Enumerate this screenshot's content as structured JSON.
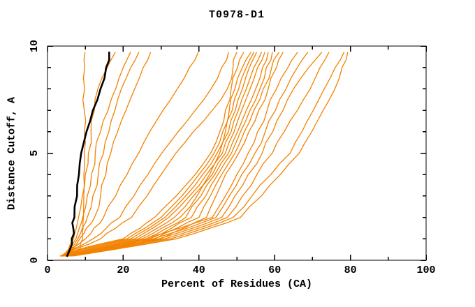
{
  "title": "T0978-D1",
  "x_axis": {
    "label": "Percent of Residues (CA)"
  },
  "y_axis": {
    "label": "Distance Cutoff, A"
  },
  "colors": {
    "model_line": "#f28200",
    "highlight_line": "#000000",
    "frame": "#000000",
    "background": "#ffffff"
  },
  "chart_data": {
    "type": "line",
    "title": "T0978-D1",
    "xlabel": "Percent of Residues (CA)",
    "ylabel": "Distance Cutoff, A",
    "xlim": [
      0,
      100
    ],
    "ylim": [
      0,
      10
    ],
    "grid": "off",
    "legend": "none",
    "x_major_ticks": [
      0,
      20,
      40,
      60,
      80,
      100
    ],
    "x_minor_ticks": [
      10,
      30,
      50,
      70,
      90
    ],
    "y_major_ticks": [
      0,
      5,
      10
    ],
    "y_minor_ticks": [
      1,
      2,
      3,
      4,
      6,
      7,
      8,
      9
    ],
    "y_grid": [
      0.2,
      0.5,
      1.0,
      1.5,
      2.0,
      3.0,
      4.0,
      5.0,
      6.0,
      7.0,
      8.0,
      9.0,
      9.7
    ],
    "series": [
      {
        "name": "model-01",
        "role": "model_line",
        "x": [
          4.4,
          8.6,
          9.3,
          9.4,
          9.5,
          9.6,
          9.6,
          9.7,
          9.7,
          9.7,
          9.8,
          9.8,
          9.9
        ]
      },
      {
        "name": "model-02",
        "role": "model_line",
        "x": [
          4.0,
          5.5,
          6.9,
          7.6,
          8.2,
          9.2,
          10.0,
          10.8,
          11.5,
          12.4,
          13.3,
          15.8,
          17.9
        ]
      },
      {
        "name": "model-03",
        "role": "model_line",
        "x": [
          4.4,
          5.8,
          7.5,
          8.4,
          9.3,
          10.5,
          11.6,
          12.6,
          14.0,
          16.0,
          18.0,
          20.0,
          21.9
        ]
      },
      {
        "name": "model-04",
        "role": "model_line",
        "x": [
          4.8,
          6.2,
          8.0,
          9.2,
          10.5,
          12.0,
          13.4,
          14.8,
          16.2,
          17.8,
          19.5,
          22.0,
          24.1
        ]
      },
      {
        "name": "model-05",
        "role": "model_line",
        "x": [
          5.2,
          6.6,
          8.5,
          10.3,
          12.4,
          14.0,
          15.4,
          16.7,
          18.5,
          20.7,
          23.0,
          25.3,
          27.2
        ]
      },
      {
        "name": "model-06",
        "role": "model_line",
        "x": [
          3.6,
          6.0,
          10.0,
          12.3,
          14.8,
          18.0,
          21.0,
          24.1,
          27.0,
          30.5,
          34.3,
          37.5,
          39.8
        ]
      },
      {
        "name": "model-07",
        "role": "model_line",
        "x": [
          4.0,
          6.5,
          12.0,
          15.5,
          19.1,
          22.8,
          26.5,
          30.2,
          34.5,
          39.0,
          43.2,
          46.0,
          47.8
        ]
      },
      {
        "name": "model-08",
        "role": "model_line",
        "x": [
          4.4,
          7.0,
          14.0,
          18.0,
          22.2,
          26.3,
          30.0,
          33.9,
          38.5,
          43.5,
          47.5,
          49.0,
          50.0
        ]
      },
      {
        "name": "model-09",
        "role": "model_line",
        "x": [
          3.4,
          8.0,
          20.0,
          24.5,
          28.3,
          34.0,
          39.0,
          43.1,
          45.5,
          47.0,
          48.5,
          50.2,
          51.8
        ]
      },
      {
        "name": "model-10",
        "role": "model_line",
        "x": [
          3.8,
          9.0,
          21.0,
          25.8,
          30.0,
          35.5,
          40.0,
          44.0,
          46.3,
          48.0,
          49.5,
          51.5,
          53.7
        ]
      },
      {
        "name": "model-11",
        "role": "model_line",
        "x": [
          4.2,
          10.0,
          22.0,
          26.8,
          31.0,
          36.5,
          41.0,
          44.8,
          47.0,
          48.8,
          50.5,
          52.5,
          54.5
        ]
      },
      {
        "name": "model-12",
        "role": "model_line",
        "x": [
          4.6,
          11.0,
          23.0,
          27.8,
          32.0,
          37.5,
          42.0,
          45.5,
          47.8,
          49.6,
          51.5,
          53.3,
          55.2
        ]
      },
      {
        "name": "model-13",
        "role": "model_line",
        "x": [
          5.0,
          12.0,
          24.0,
          29.0,
          33.5,
          38.5,
          42.8,
          46.2,
          48.5,
          50.4,
          52.5,
          54.5,
          56.5
        ]
      },
      {
        "name": "model-14",
        "role": "model_line",
        "x": [
          5.4,
          13.0,
          25.0,
          30.2,
          35.0,
          39.5,
          43.5,
          47.0,
          49.3,
          51.3,
          53.5,
          55.5,
          57.4
        ]
      },
      {
        "name": "model-15",
        "role": "model_line",
        "x": [
          5.8,
          14.0,
          26.0,
          31.5,
          36.5,
          40.5,
          44.2,
          47.8,
          50.2,
          52.5,
          55.0,
          56.8,
          58.3
        ]
      },
      {
        "name": "model-16",
        "role": "model_line",
        "x": [
          6.2,
          15.0,
          27.0,
          32.8,
          38.0,
          41.8,
          45.0,
          48.6,
          51.0,
          53.5,
          56.1,
          57.8,
          59.4
        ]
      },
      {
        "name": "model-17",
        "role": "model_line",
        "x": [
          3.5,
          16.0,
          28.5,
          34.2,
          40.0,
          43.0,
          46.0,
          49.5,
          52.0,
          54.5,
          57.0,
          59.2,
          61.1
        ]
      },
      {
        "name": "model-18",
        "role": "model_line",
        "x": [
          4.0,
          17.0,
          30.0,
          36.0,
          42.0,
          44.5,
          47.0,
          50.5,
          53.2,
          55.8,
          58.3,
          60.5,
          62.2
        ]
      },
      {
        "name": "model-19",
        "role": "model_line",
        "x": [
          4.5,
          12.0,
          26.0,
          35.0,
          43.5,
          47.0,
          50.0,
          53.0,
          55.5,
          58.0,
          60.5,
          63.5,
          66.0
        ]
      },
      {
        "name": "model-20",
        "role": "model_line",
        "x": [
          5.0,
          13.0,
          28.0,
          37.0,
          44.5,
          48.0,
          51.3,
          54.8,
          57.5,
          60.2,
          63.0,
          66.0,
          68.7
        ]
      },
      {
        "name": "model-21",
        "role": "model_line",
        "x": [
          5.5,
          14.5,
          29.5,
          38.5,
          46.0,
          49.5,
          53.0,
          56.7,
          59.5,
          62.2,
          65.0,
          69.0,
          72.4
        ]
      },
      {
        "name": "model-22",
        "role": "model_line",
        "x": [
          6.0,
          15.5,
          31.0,
          40.0,
          47.5,
          51.5,
          55.3,
          59.4,
          62.5,
          66.0,
          69.4,
          72.0,
          74.3
        ]
      },
      {
        "name": "model-23",
        "role": "model_line",
        "x": [
          6.4,
          16.5,
          32.5,
          41.5,
          49.0,
          54.0,
          59.0,
          64.1,
          67.2,
          70.2,
          73.1,
          76.0,
          78.3
        ]
      },
      {
        "name": "model-24",
        "role": "model_line",
        "x": [
          6.8,
          17.5,
          34.0,
          43.0,
          51.0,
          56.5,
          61.5,
          66.5,
          69.8,
          72.8,
          75.9,
          77.8,
          79.3
        ]
      },
      {
        "name": "highlighted-model",
        "role": "highlight_line",
        "x": [
          5.2,
          5.9,
          6.4,
          6.8,
          7.1,
          7.8,
          8.3,
          8.9,
          10.3,
          12.0,
          14.0,
          15.5,
          16.3
        ]
      }
    ]
  }
}
